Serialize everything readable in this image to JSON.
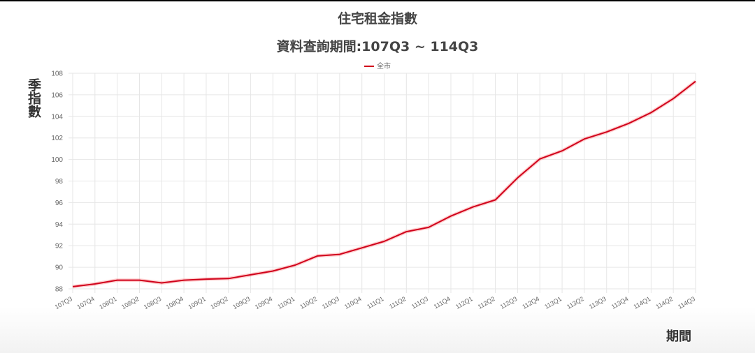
{
  "chart_data": {
    "type": "line",
    "title": "住宅租金指數",
    "subtitle": "資料查詢期間:107Q3 ~ 114Q3",
    "xlabel": "期間",
    "ylabel": "季指數",
    "ylim": [
      88,
      108
    ],
    "y_ticks": [
      88,
      90,
      92,
      94,
      96,
      98,
      100,
      102,
      104,
      106,
      108
    ],
    "grid": true,
    "legend_position": "top",
    "categories": [
      "107Q3",
      "107Q4",
      "108Q1",
      "108Q2",
      "108Q3",
      "108Q4",
      "109Q1",
      "109Q2",
      "109Q3",
      "109Q4",
      "110Q1",
      "110Q2",
      "110Q3",
      "110Q4",
      "111Q1",
      "111Q2",
      "111Q3",
      "111Q4",
      "112Q1",
      "112Q2",
      "112Q3",
      "112Q4",
      "113Q1",
      "113Q2",
      "113Q3",
      "113Q4",
      "114Q1",
      "114Q2",
      "114Q3"
    ],
    "series": [
      {
        "name": "全市",
        "color": "#d0021b",
        "values": [
          88.2,
          88.45,
          88.8,
          88.8,
          88.55,
          88.8,
          88.9,
          88.95,
          89.3,
          89.65,
          90.2,
          91.05,
          91.2,
          91.8,
          92.4,
          93.3,
          93.7,
          94.75,
          95.6,
          96.25,
          98.3,
          100.05,
          100.8,
          101.9,
          102.55,
          103.35,
          104.35,
          105.65,
          107.25
        ]
      }
    ]
  }
}
